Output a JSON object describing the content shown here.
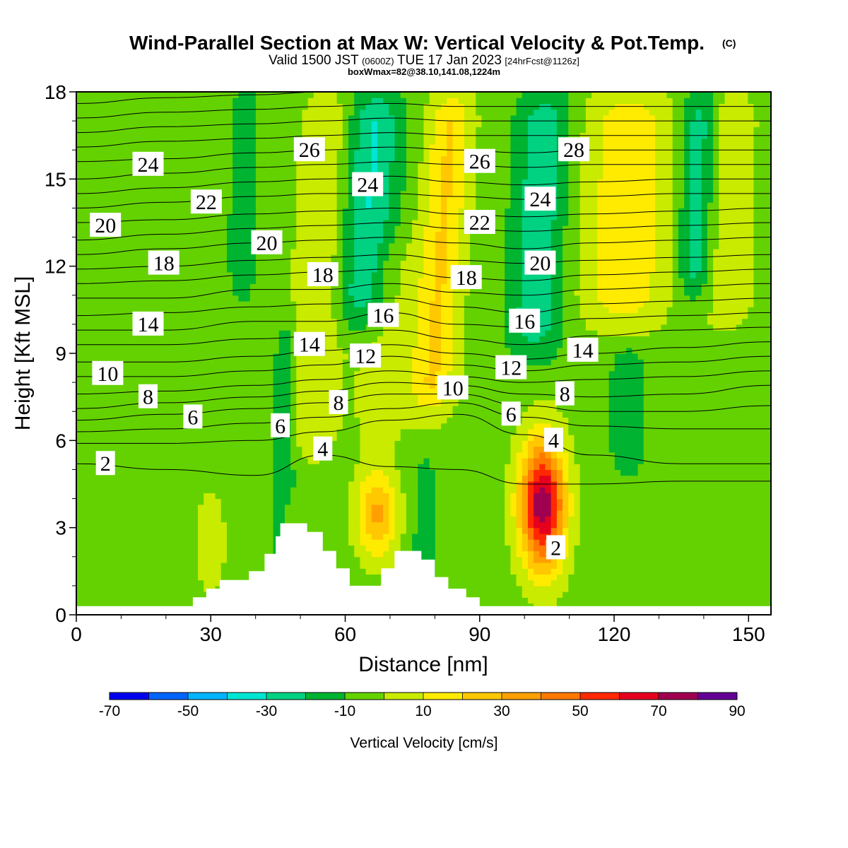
{
  "chart_data": {
    "type": "heatmap",
    "title": "Wind-Parallel Section at Max W: Vertical Velocity & Pot.Temp.",
    "title_mark": "(C)",
    "subtitle": {
      "valid": "Valid 1500 JST",
      "zulu": "(0600Z)",
      "date": "TUE 17 Jan 2023",
      "run": "[24hrFcst@1126z]"
    },
    "box_info": "boxWmax=82@38.10,141.08,1224m",
    "xlabel": "Distance [nm]",
    "ylabel": "Height [Kft MSL]",
    "xlim": [
      0,
      155
    ],
    "ylim": [
      0,
      18
    ],
    "x_ticks": [
      "0",
      "30",
      "60",
      "90",
      "120",
      "150"
    ],
    "y_ticks": [
      "0",
      "3",
      "6",
      "9",
      "12",
      "15",
      "18"
    ],
    "colorbar": {
      "label": "Vertical Velocity [cm/s]",
      "tick_labels": [
        "-70",
        "-50",
        "-30",
        "-10",
        "10",
        "30",
        "50",
        "70",
        "90"
      ],
      "colors": [
        "#0000f0",
        "#0064ff",
        "#00b4ff",
        "#00e6d2",
        "#00d282",
        "#00b432",
        "#64d200",
        "#c8eb00",
        "#ffeb00",
        "#ffc800",
        "#ffa000",
        "#ff7800",
        "#ff2800",
        "#e6001e",
        "#a00050",
        "#640096"
      ],
      "min": -70,
      "max": 90,
      "step": 10
    },
    "background_value": -5,
    "updraft_bands": [
      {
        "x": 52,
        "width": 6,
        "slope": 0.35,
        "ymin": 5.5,
        "ymax": 18,
        "value": 14
      },
      {
        "x": 79,
        "width": 5,
        "slope": 0.45,
        "ymin": 7,
        "ymax": 18,
        "value": 26
      },
      {
        "x": 122,
        "width": 10,
        "slope": 0.2,
        "ymin": 10,
        "ymax": 18,
        "value": 22
      },
      {
        "x": 145,
        "width": 6,
        "slope": 0.1,
        "ymin": 10,
        "ymax": 18,
        "value": 14
      },
      {
        "x": 68,
        "width": 6,
        "slope": 0.3,
        "ymin": 6,
        "ymax": 13,
        "value": 11
      },
      {
        "x": 30,
        "width": 3,
        "slope": 0,
        "ymin": 1,
        "ymax": 4,
        "value": 14
      },
      {
        "x": 47,
        "width": 2,
        "slope": 0,
        "ymin": 2,
        "ymax": 4,
        "value": 14
      }
    ],
    "downdraft_bands": [
      {
        "x": 64,
        "width": 6,
        "slope": 0.35,
        "ymin": 10,
        "ymax": 18,
        "value": -26
      },
      {
        "x": 102,
        "width": 6,
        "slope": 0.3,
        "ymin": 9,
        "ymax": 18,
        "value": -22
      },
      {
        "x": 37,
        "width": 3,
        "slope": 0.1,
        "ymin": 11,
        "ymax": 18,
        "value": -14
      },
      {
        "x": 138,
        "width": 4,
        "slope": 0.2,
        "ymin": 11,
        "ymax": 18,
        "value": -24
      },
      {
        "x": 46,
        "width": 2.5,
        "slope": 0.1,
        "ymin": 1,
        "ymax": 10,
        "value": -15
      },
      {
        "x": 78,
        "width": 2.5,
        "slope": 0,
        "ymin": 1,
        "ymax": 5,
        "value": -15
      },
      {
        "x": 123,
        "width": 4,
        "slope": 0,
        "ymin": 5,
        "ymax": 9,
        "value": -14
      }
    ],
    "cells": [
      {
        "x": 104,
        "y": 3.8,
        "rx": 5,
        "ry": 2.2,
        "value": 82
      },
      {
        "x": 67,
        "y": 3.5,
        "rx": 4.5,
        "ry": 1.5,
        "value": 38
      }
    ],
    "terrain": [
      [
        0,
        0.3
      ],
      [
        26,
        0.3
      ],
      [
        26,
        0.6
      ],
      [
        29,
        0.6
      ],
      [
        29,
        0.9
      ],
      [
        32,
        0.9
      ],
      [
        32,
        1.2
      ],
      [
        38.5,
        1.2
      ],
      [
        38.5,
        1.5
      ],
      [
        42,
        1.5
      ],
      [
        42,
        2.1
      ],
      [
        44.5,
        2.1
      ],
      [
        44.5,
        2.7
      ],
      [
        45.5,
        2.7
      ],
      [
        45.5,
        3.15
      ],
      [
        51.5,
        3.15
      ],
      [
        51.5,
        2.85
      ],
      [
        55,
        2.85
      ],
      [
        55,
        2.2
      ],
      [
        58,
        2.2
      ],
      [
        58,
        1.6
      ],
      [
        61,
        1.6
      ],
      [
        61,
        1.0
      ],
      [
        68,
        1.0
      ],
      [
        68,
        1.6
      ],
      [
        71,
        1.6
      ],
      [
        71,
        2.2
      ],
      [
        77,
        2.2
      ],
      [
        77,
        1.9
      ],
      [
        80,
        1.9
      ],
      [
        80,
        1.3
      ],
      [
        83,
        1.3
      ],
      [
        83,
        0.9
      ],
      [
        87,
        0.9
      ],
      [
        87,
        0.6
      ],
      [
        90,
        0.6
      ],
      [
        90,
        0.3
      ],
      [
        155,
        0.3
      ]
    ],
    "isentropes_kft": {
      "columns": [
        0,
        20,
        40,
        55,
        70,
        85,
        100,
        115,
        135,
        155
      ],
      "lines": [
        [
          5.2,
          5.0,
          4.8,
          5.5,
          5.1,
          5.0,
          4.5,
          4.5,
          4.6,
          4.6
        ],
        [
          5.9,
          5.9,
          6.0,
          6.3,
          6.7,
          6.9,
          6.2,
          5.5,
          5.2,
          5.2
        ],
        [
          6.3,
          6.4,
          6.6,
          6.8,
          7.1,
          7.3,
          6.8,
          6.5,
          6.4,
          6.4
        ],
        [
          6.7,
          6.9,
          7.1,
          7.3,
          7.6,
          7.6,
          7.2,
          7.0,
          7.0,
          7.2
        ],
        [
          7.1,
          7.3,
          7.5,
          7.7,
          8.0,
          7.9,
          7.6,
          7.5,
          7.6,
          7.9
        ],
        [
          7.6,
          7.7,
          7.9,
          8.1,
          8.4,
          8.2,
          8.0,
          8.1,
          8.2,
          8.4
        ],
        [
          8.2,
          8.2,
          8.4,
          8.6,
          8.9,
          8.6,
          8.4,
          8.6,
          8.7,
          8.9
        ],
        [
          8.7,
          8.7,
          8.9,
          9.1,
          9.3,
          9.0,
          8.8,
          9.0,
          9.2,
          9.4
        ],
        [
          9.3,
          9.3,
          9.5,
          9.6,
          9.8,
          9.5,
          9.3,
          9.6,
          9.8,
          9.9
        ],
        [
          9.8,
          9.8,
          10.1,
          10.1,
          10.4,
          10.0,
          9.9,
          10.2,
          10.3,
          10.4
        ],
        [
          10.3,
          10.4,
          10.6,
          10.7,
          10.9,
          10.6,
          10.4,
          10.7,
          10.8,
          10.9
        ],
        [
          10.9,
          10.9,
          11.2,
          11.2,
          11.4,
          11.1,
          11.0,
          11.2,
          11.3,
          11.4
        ],
        [
          11.4,
          11.5,
          11.7,
          11.8,
          11.9,
          11.6,
          11.5,
          11.7,
          11.8,
          11.9
        ],
        [
          11.9,
          12.0,
          12.2,
          12.3,
          12.4,
          12.2,
          12.1,
          12.2,
          12.3,
          12.4
        ],
        [
          12.4,
          12.6,
          12.8,
          12.9,
          13.0,
          12.8,
          12.6,
          12.8,
          12.9,
          13.0
        ],
        [
          12.9,
          13.1,
          13.3,
          13.4,
          13.5,
          13.3,
          13.2,
          13.3,
          13.4,
          13.5
        ],
        [
          13.5,
          13.6,
          13.8,
          13.9,
          14.0,
          13.8,
          13.7,
          13.8,
          13.9,
          14.0
        ],
        [
          14.0,
          14.2,
          14.4,
          14.5,
          14.5,
          14.4,
          14.3,
          14.4,
          14.5,
          14.5
        ],
        [
          14.5,
          14.7,
          14.9,
          15.0,
          15.1,
          14.9,
          14.8,
          14.9,
          15.0,
          15.0
        ],
        [
          15.0,
          15.2,
          15.4,
          15.5,
          15.6,
          15.5,
          15.4,
          15.5,
          15.5,
          15.5
        ],
        [
          15.6,
          15.7,
          15.9,
          16.0,
          16.1,
          16.0,
          15.9,
          16.0,
          16.0,
          16.0
        ],
        [
          16.1,
          16.3,
          16.4,
          16.5,
          16.6,
          16.5,
          16.5,
          16.5,
          16.5,
          16.5
        ],
        [
          16.6,
          16.8,
          16.9,
          17.0,
          17.1,
          17.0,
          17.0,
          17.0,
          17.0,
          17.0
        ],
        [
          17.1,
          17.3,
          17.4,
          17.5,
          17.6,
          17.5,
          17.5,
          17.5,
          17.5,
          17.5
        ],
        [
          17.6,
          17.8,
          17.9,
          18.0,
          18.0,
          18.0,
          18.0,
          18.0,
          18.0,
          18.0
        ]
      ]
    },
    "contour_labels": [
      {
        "text": "2",
        "x": 6.5,
        "y": 5.2
      },
      {
        "text": "2",
        "x": 107,
        "y": 2.3
      },
      {
        "text": "4",
        "x": 55,
        "y": 5.7
      },
      {
        "text": "4",
        "x": 106.5,
        "y": 6.0
      },
      {
        "text": "6",
        "x": 26,
        "y": 6.8
      },
      {
        "text": "6",
        "x": 45.5,
        "y": 6.5
      },
      {
        "text": "6",
        "x": 97,
        "y": 6.9
      },
      {
        "text": "8",
        "x": 16,
        "y": 7.5
      },
      {
        "text": "8",
        "x": 58.5,
        "y": 7.3
      },
      {
        "text": "8",
        "x": 109,
        "y": 7.6
      },
      {
        "text": "10",
        "x": 7,
        "y": 8.3
      },
      {
        "text": "10",
        "x": 84,
        "y": 7.8
      },
      {
        "text": "12",
        "x": 64.5,
        "y": 8.9
      },
      {
        "text": "12",
        "x": 97,
        "y": 8.5
      },
      {
        "text": "14",
        "x": 16,
        "y": 10.0
      },
      {
        "text": "14",
        "x": 52,
        "y": 9.3
      },
      {
        "text": "14",
        "x": 113,
        "y": 9.1
      },
      {
        "text": "16",
        "x": 68.5,
        "y": 10.3
      },
      {
        "text": "16",
        "x": 100,
        "y": 10.1
      },
      {
        "text": "18",
        "x": 19.5,
        "y": 12.1
      },
      {
        "text": "18",
        "x": 55,
        "y": 11.7
      },
      {
        "text": "18",
        "x": 87,
        "y": 11.6
      },
      {
        "text": "20",
        "x": 6.5,
        "y": 13.4
      },
      {
        "text": "20",
        "x": 42.5,
        "y": 12.8
      },
      {
        "text": "20",
        "x": 103.5,
        "y": 12.1
      },
      {
        "text": "22",
        "x": 29,
        "y": 14.2
      },
      {
        "text": "22",
        "x": 90,
        "y": 13.5
      },
      {
        "text": "24",
        "x": 16,
        "y": 15.5
      },
      {
        "text": "24",
        "x": 65,
        "y": 14.8
      },
      {
        "text": "24",
        "x": 103.5,
        "y": 14.3
      },
      {
        "text": "26",
        "x": 52,
        "y": 16.0
      },
      {
        "text": "26",
        "x": 90,
        "y": 15.6
      },
      {
        "text": "28",
        "x": 111,
        "y": 16.0
      }
    ]
  }
}
